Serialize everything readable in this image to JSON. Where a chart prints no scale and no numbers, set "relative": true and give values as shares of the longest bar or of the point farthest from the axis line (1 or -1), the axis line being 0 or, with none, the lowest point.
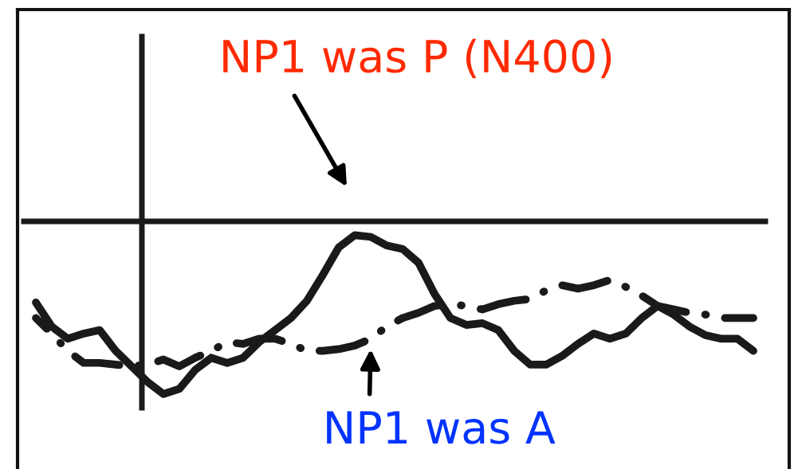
{
  "chart_data": {
    "type": "line",
    "relative": true,
    "categories": [
      null,
      null,
      null,
      null,
      null,
      null,
      null,
      null,
      null,
      null,
      null,
      null,
      null,
      null,
      null,
      null,
      null,
      null,
      null,
      null,
      null,
      null,
      null,
      null,
      null,
      null,
      null,
      null,
      null,
      null,
      null,
      null,
      null,
      null,
      null,
      null,
      null,
      null,
      null,
      null,
      null,
      null,
      null,
      null,
      null,
      null
    ],
    "series": [
      {
        "color": "#1a1a1a",
        "line_style": "solid",
        "values": [
          -0.47,
          -0.61,
          -0.68,
          -0.65,
          -0.63,
          -0.75,
          -0.84,
          -0.93,
          -1.0,
          -0.97,
          -0.86,
          -0.79,
          -0.82,
          -0.79,
          -0.7,
          -0.63,
          -0.56,
          -0.46,
          -0.31,
          -0.15,
          -0.08,
          -0.09,
          -0.14,
          -0.16,
          -0.24,
          -0.42,
          -0.56,
          -0.6,
          -0.59,
          -0.63,
          -0.75,
          -0.83,
          -0.83,
          -0.78,
          -0.71,
          -0.65,
          -0.68,
          -0.65,
          -0.56,
          -0.49,
          -0.54,
          -0.61,
          -0.66,
          -0.68,
          -0.68,
          -0.75
        ]
      },
      {
        "color": "#1a1a1a",
        "line_style": "dashdot",
        "values": [
          -0.56,
          -0.65,
          -0.75,
          -0.82,
          -0.82,
          -0.83,
          -0.84,
          -0.83,
          -0.8,
          -0.84,
          -0.79,
          -0.75,
          -0.7,
          -0.71,
          -0.68,
          -0.68,
          -0.71,
          -0.75,
          -0.75,
          -0.74,
          -0.72,
          -0.68,
          -0.61,
          -0.56,
          -0.53,
          -0.49,
          -0.48,
          -0.49,
          -0.51,
          -0.48,
          -0.46,
          -0.45,
          -0.4,
          -0.37,
          -0.39,
          -0.37,
          -0.34,
          -0.38,
          -0.43,
          -0.49,
          -0.51,
          -0.53,
          -0.54,
          -0.56,
          -0.56,
          -0.56
        ]
      }
    ],
    "annotations": [
      "NP1 was P (N400)",
      "NP1 was A"
    ],
    "grid": false,
    "legend": false,
    "marker": "none"
  }
}
